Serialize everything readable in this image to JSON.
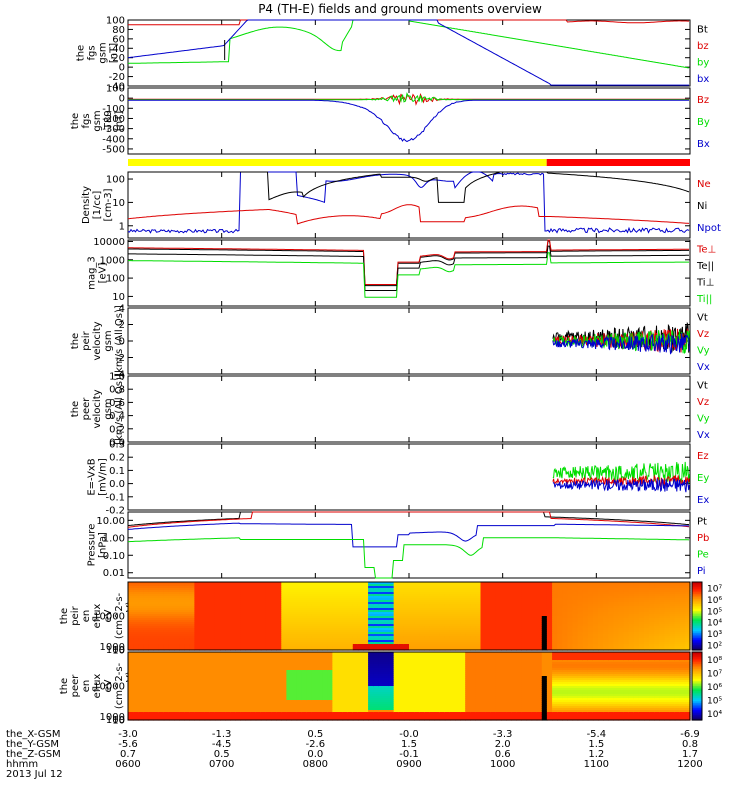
{
  "title": "P4 (TH-E) fields and ground moments overview",
  "colors": {
    "black": "#000000",
    "red": "#dd0000",
    "green": "#00dd00",
    "blue": "#0000cc",
    "yellow": "#ffff00"
  },
  "chart_data": [
    {
      "type": "line",
      "ylabel": [
        "the",
        "fgs",
        "gsm",
        "[nT]"
      ],
      "ylim": [
        -40,
        100
      ],
      "ticks": [
        "100",
        "80",
        "60",
        "40",
        "20",
        "0",
        "-20",
        "-40"
      ],
      "legend": [
        "Bt",
        "bz",
        "by",
        "bx"
      ],
      "legend_colors": [
        "black",
        "red",
        "green",
        "blue"
      ]
    },
    {
      "type": "line",
      "ylabel": [
        "the",
        "fgs",
        "gsm",
        "-T89",
        "[nT]"
      ],
      "ylim": [
        -550,
        100
      ],
      "ticks": [
        "100",
        "0",
        "-100",
        "-200",
        "-300",
        "-400",
        "-500"
      ],
      "legend": [
        "Bz",
        "By",
        "Bx"
      ],
      "legend_colors": [
        "red",
        "green",
        "blue"
      ]
    },
    {
      "type": "line",
      "log": true,
      "ylabel": [
        "Density",
        "[1/cc]",
        "[cm-3]"
      ],
      "ylim": [
        0.3,
        200
      ],
      "ticks": [
        "100",
        "10",
        "1"
      ],
      "legend": [
        "Ne",
        "Ni",
        "Npot"
      ],
      "legend_colors": [
        "red",
        "black",
        "blue"
      ]
    },
    {
      "type": "line",
      "log": true,
      "ylabel": [
        "mag_3",
        "[eV]"
      ],
      "ylim": [
        3,
        12000
      ],
      "ticks": [
        "10000",
        "1000",
        "100",
        "10"
      ],
      "legend": [
        "Te⊥",
        "Te||",
        "Ti⊥",
        "Ti||"
      ],
      "legend_colors": [
        "red",
        "black",
        "black",
        "green"
      ]
    },
    {
      "type": "line",
      "ylabel": [
        "the",
        "peir",
        "velocity",
        "gsm",
        "[km/s (All Qs)]"
      ],
      "ylim": [
        -4,
        4
      ],
      "ticks": [
        "4",
        "2",
        "0",
        "-2",
        "-4"
      ],
      "legend": [
        "Vt",
        "Vz",
        "Vy",
        "Vx"
      ],
      "legend_colors": [
        "black",
        "red",
        "green",
        "blue"
      ]
    },
    {
      "type": "line",
      "ylabel": [
        "the",
        "peer",
        "velocity",
        "gsm",
        "[km/s (All Qs)]"
      ],
      "ylim": [
        0,
        1
      ],
      "ticks": [
        "1.0",
        "0.8",
        "0.6",
        "0.4",
        "0.2",
        "0.0"
      ],
      "legend": [
        "Vt",
        "Vz",
        "Vy",
        "Vx"
      ],
      "legend_colors": [
        "black",
        "red",
        "green",
        "blue"
      ]
    },
    {
      "type": "line",
      "ylabel": [
        "E=-VxB",
        "[mV/m]"
      ],
      "ylim": [
        -0.2,
        0.3
      ],
      "ticks": [
        "0.3",
        "0.2",
        "0.1",
        "0.0",
        "-0.1",
        "-0.2"
      ],
      "legend": [
        "Ez",
        "Ey",
        "Ex"
      ],
      "legend_colors": [
        "red",
        "green",
        "blue"
      ]
    },
    {
      "type": "line",
      "log": true,
      "ylabel": [
        "Pressure",
        "[nPa]"
      ],
      "ylim": [
        0.005,
        30
      ],
      "ticks": [
        "10.00",
        "1.00",
        "0.10",
        "0.01"
      ],
      "legend": [
        "Pt",
        "Pb",
        "Pe",
        "Pi"
      ],
      "legend_colors": [
        "black",
        "red",
        "green",
        "blue"
      ]
    },
    {
      "type": "heatmap",
      "ylabel": [
        "the",
        "peir",
        "en",
        "eflux",
        "eV",
        "(cm^2-s-",
        "sr-eV)"
      ],
      "ylim": [
        5,
        20000
      ],
      "ticks": [
        "10000",
        "1000",
        "100",
        "10"
      ],
      "cbar": [
        "10⁷",
        "10⁶",
        "10⁵",
        "10⁴",
        "10³",
        "10²"
      ]
    },
    {
      "type": "heatmap",
      "ylabel": [
        "the",
        "peer",
        "en",
        "eflux",
        "eV",
        "(cm^2-s-",
        "sr-eV)"
      ],
      "ylim": [
        5,
        20000
      ],
      "ticks": [
        "10000",
        "1000",
        "100",
        "10"
      ],
      "cbar": [
        "10⁸",
        "10⁷",
        "10⁶",
        "10⁵",
        "10⁴"
      ]
    }
  ],
  "xaxis": {
    "rows": [
      {
        "name": "the_X-GSM",
        "values": [
          "-3.0",
          "-1.3",
          "0.5",
          "-0.0",
          "-3.3",
          "-5.4",
          "-6.9"
        ]
      },
      {
        "name": "the_Y-GSM",
        "values": [
          "-5.6",
          "-4.5",
          "-2.6",
          "1.5",
          "2.0",
          "1.5",
          "0.8"
        ]
      },
      {
        "name": "the_Z-GSM",
        "values": [
          "0.7",
          "0.5",
          "0.0",
          "-0.1",
          "0.6",
          "1.2",
          "1.7"
        ]
      },
      {
        "name": "hhmm",
        "values": [
          "0600",
          "0700",
          "0800",
          "0900",
          "1000",
          "1100",
          "1200"
        ]
      }
    ],
    "date": "2013 Jul 12"
  }
}
